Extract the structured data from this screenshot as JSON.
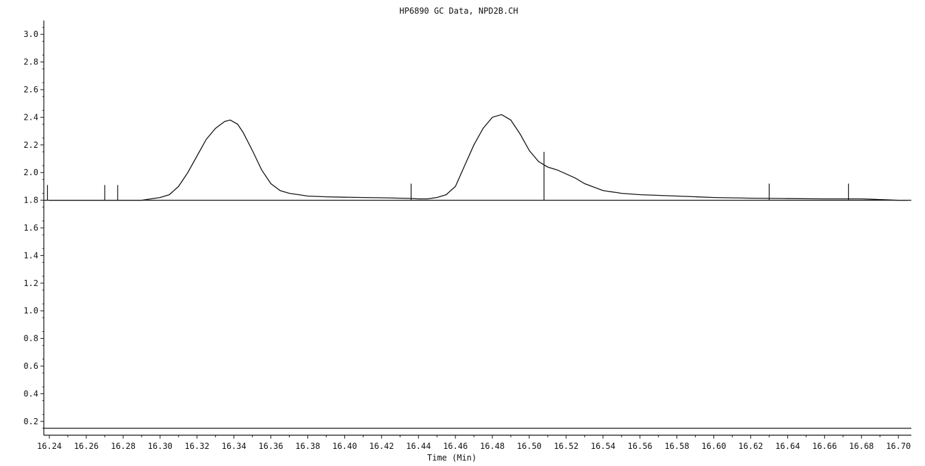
{
  "chart_data": {
    "type": "line",
    "title": "HP6890 GC Data, NPD2B.CH",
    "xlabel": "Time (Min)",
    "ylabel": "",
    "xlim": [
      16.237,
      16.707
    ],
    "ylim": [
      0.1,
      3.1
    ],
    "x_ticks": [
      "16.24",
      "16.26",
      "16.28",
      "16.30",
      "16.32",
      "16.34",
      "16.36",
      "16.38",
      "16.40",
      "16.42",
      "16.44",
      "16.46",
      "16.48",
      "16.50",
      "16.52",
      "16.54",
      "16.56",
      "16.58",
      "16.60",
      "16.62",
      "16.64",
      "16.66",
      "16.68",
      "16.70"
    ],
    "y_ticks": [
      "0.2",
      "0.4",
      "0.6",
      "0.8",
      "1.0",
      "1.2",
      "1.4",
      "1.6",
      "1.8",
      "2.0",
      "2.2",
      "2.4",
      "2.6",
      "2.8",
      "3.0"
    ],
    "grid": false,
    "series": [
      {
        "x": [
          16.24,
          16.28,
          16.29,
          16.295,
          16.3,
          16.305,
          16.31,
          16.315,
          16.32,
          16.325,
          16.33,
          16.335,
          16.338,
          16.342,
          16.345,
          16.35,
          16.355,
          16.36,
          16.365,
          16.37,
          16.38,
          16.39,
          16.4,
          16.41,
          16.42,
          16.43,
          16.436,
          16.44,
          16.445,
          16.45,
          16.455,
          16.46,
          16.465,
          16.47,
          16.475,
          16.48,
          16.485,
          16.49,
          16.495,
          16.5,
          16.505,
          16.51,
          16.515,
          16.52,
          16.525,
          16.53,
          16.54,
          16.55,
          16.56,
          16.58,
          16.6,
          16.62,
          16.64,
          16.66,
          16.68,
          16.7,
          16.705
        ],
        "y": [
          1.8,
          1.8,
          1.8,
          1.81,
          1.82,
          1.84,
          1.9,
          2.0,
          2.12,
          2.24,
          2.32,
          2.37,
          2.38,
          2.35,
          2.29,
          2.16,
          2.02,
          1.92,
          1.87,
          1.85,
          1.83,
          1.825,
          1.822,
          1.82,
          1.818,
          1.815,
          1.813,
          1.81,
          1.81,
          1.82,
          1.84,
          1.9,
          2.05,
          2.2,
          2.32,
          2.4,
          2.42,
          2.38,
          2.28,
          2.16,
          2.08,
          2.04,
          2.02,
          1.99,
          1.96,
          1.92,
          1.87,
          1.85,
          1.84,
          1.83,
          1.82,
          1.815,
          1.812,
          1.81,
          1.81,
          1.8,
          1.8
        ]
      },
      {
        "x": [
          16.237,
          16.707
        ],
        "y": [
          0.15,
          0.15
        ]
      }
    ],
    "baseline_y": 1.8,
    "peak_markers": [
      {
        "x": 16.239,
        "y": 1.91
      },
      {
        "x": 16.27,
        "y": 1.91
      },
      {
        "x": 16.277,
        "y": 1.91
      },
      {
        "x": 16.436,
        "y": 1.92
      },
      {
        "x": 16.508,
        "y": 2.15
      },
      {
        "x": 16.63,
        "y": 1.92
      },
      {
        "x": 16.673,
        "y": 1.92
      }
    ]
  }
}
